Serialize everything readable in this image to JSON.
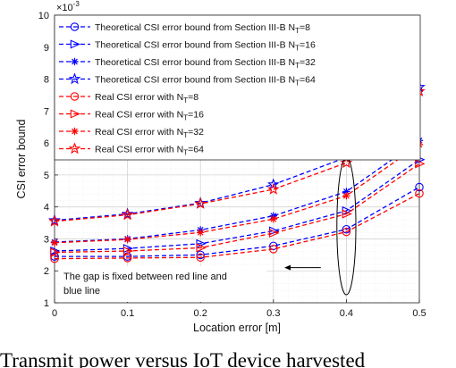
{
  "caption": "Transmit power versus IoT device harvested",
  "chart_data": {
    "type": "line",
    "xlabel": "Location error [m]",
    "ylabel": "CSI error bound",
    "y_exponent_label": "×10",
    "y_exponent_power": "-3",
    "xlim": [
      0,
      0.5
    ],
    "ylim": [
      1,
      10
    ],
    "x_ticks": [
      "0",
      "0.1",
      "0.2",
      "0.3",
      "0.4",
      "0.5"
    ],
    "y_ticks": [
      "1",
      "2",
      "3",
      "4",
      "5",
      "6",
      "7",
      "8",
      "9",
      "10"
    ],
    "grid": true,
    "legend_position": "top-left",
    "x": [
      0,
      0.1,
      0.2,
      0.3,
      0.4,
      0.5
    ],
    "series": [
      {
        "name": "Theoretical CSI error bound from Section III-B N",
        "sub": "T",
        "suffix": "=8",
        "color": "#0000ff",
        "dash": true,
        "marker": "circle",
        "values": [
          2.45,
          2.45,
          2.5,
          2.78,
          3.3,
          4.62
        ]
      },
      {
        "name": "Theoretical CSI error bound from Section III-B N",
        "sub": "T",
        "suffix": "=16",
        "color": "#0000ff",
        "dash": true,
        "marker": "triangle",
        "values": [
          2.62,
          2.7,
          2.85,
          3.25,
          3.88,
          5.48
        ]
      },
      {
        "name": "Theoretical CSI error bound from Section III-B N",
        "sub": "T",
        "suffix": "=32",
        "color": "#0000ff",
        "dash": true,
        "marker": "asterisk",
        "values": [
          2.9,
          3.0,
          3.28,
          3.72,
          4.48,
          6.08
        ]
      },
      {
        "name": "Theoretical CSI error bound from Section III-B N",
        "sub": "T",
        "suffix": "=64",
        "color": "#0000ff",
        "dash": true,
        "marker": "star",
        "values": [
          3.58,
          3.78,
          4.12,
          4.7,
          5.55,
          7.75
        ]
      },
      {
        "name": "Real CSI error with N",
        "sub": "T",
        "suffix": "=8",
        "color": "#ff0000",
        "dash": true,
        "marker": "circle",
        "values": [
          2.38,
          2.4,
          2.42,
          2.68,
          3.22,
          4.42
        ]
      },
      {
        "name": "Real CSI error with N",
        "sub": "T",
        "suffix": "=16",
        "color": "#ff0000",
        "dash": true,
        "marker": "triangle",
        "values": [
          2.58,
          2.62,
          2.72,
          3.18,
          3.78,
          5.35
        ]
      },
      {
        "name": "Real CSI error with N",
        "sub": "T",
        "suffix": "=32",
        "color": "#ff0000",
        "dash": true,
        "marker": "asterisk",
        "values": [
          2.88,
          2.98,
          3.2,
          3.62,
          4.35,
          5.95
        ]
      },
      {
        "name": "Real CSI error with N",
        "sub": "T",
        "suffix": "=64",
        "color": "#ff0000",
        "dash": true,
        "marker": "star",
        "values": [
          3.55,
          3.75,
          4.1,
          4.55,
          5.38,
          7.62
        ]
      }
    ],
    "annotation": {
      "lines": [
        "The gap is fixed between red line and",
        "blue line"
      ],
      "ellipse_center": [
        0.4,
        3.4
      ],
      "ellipse_half_width": 0.013,
      "ellipse_half_height": 2.15,
      "arrow_from": [
        0.365,
        2.1
      ],
      "arrow_to": [
        0.315,
        2.1
      ]
    }
  }
}
